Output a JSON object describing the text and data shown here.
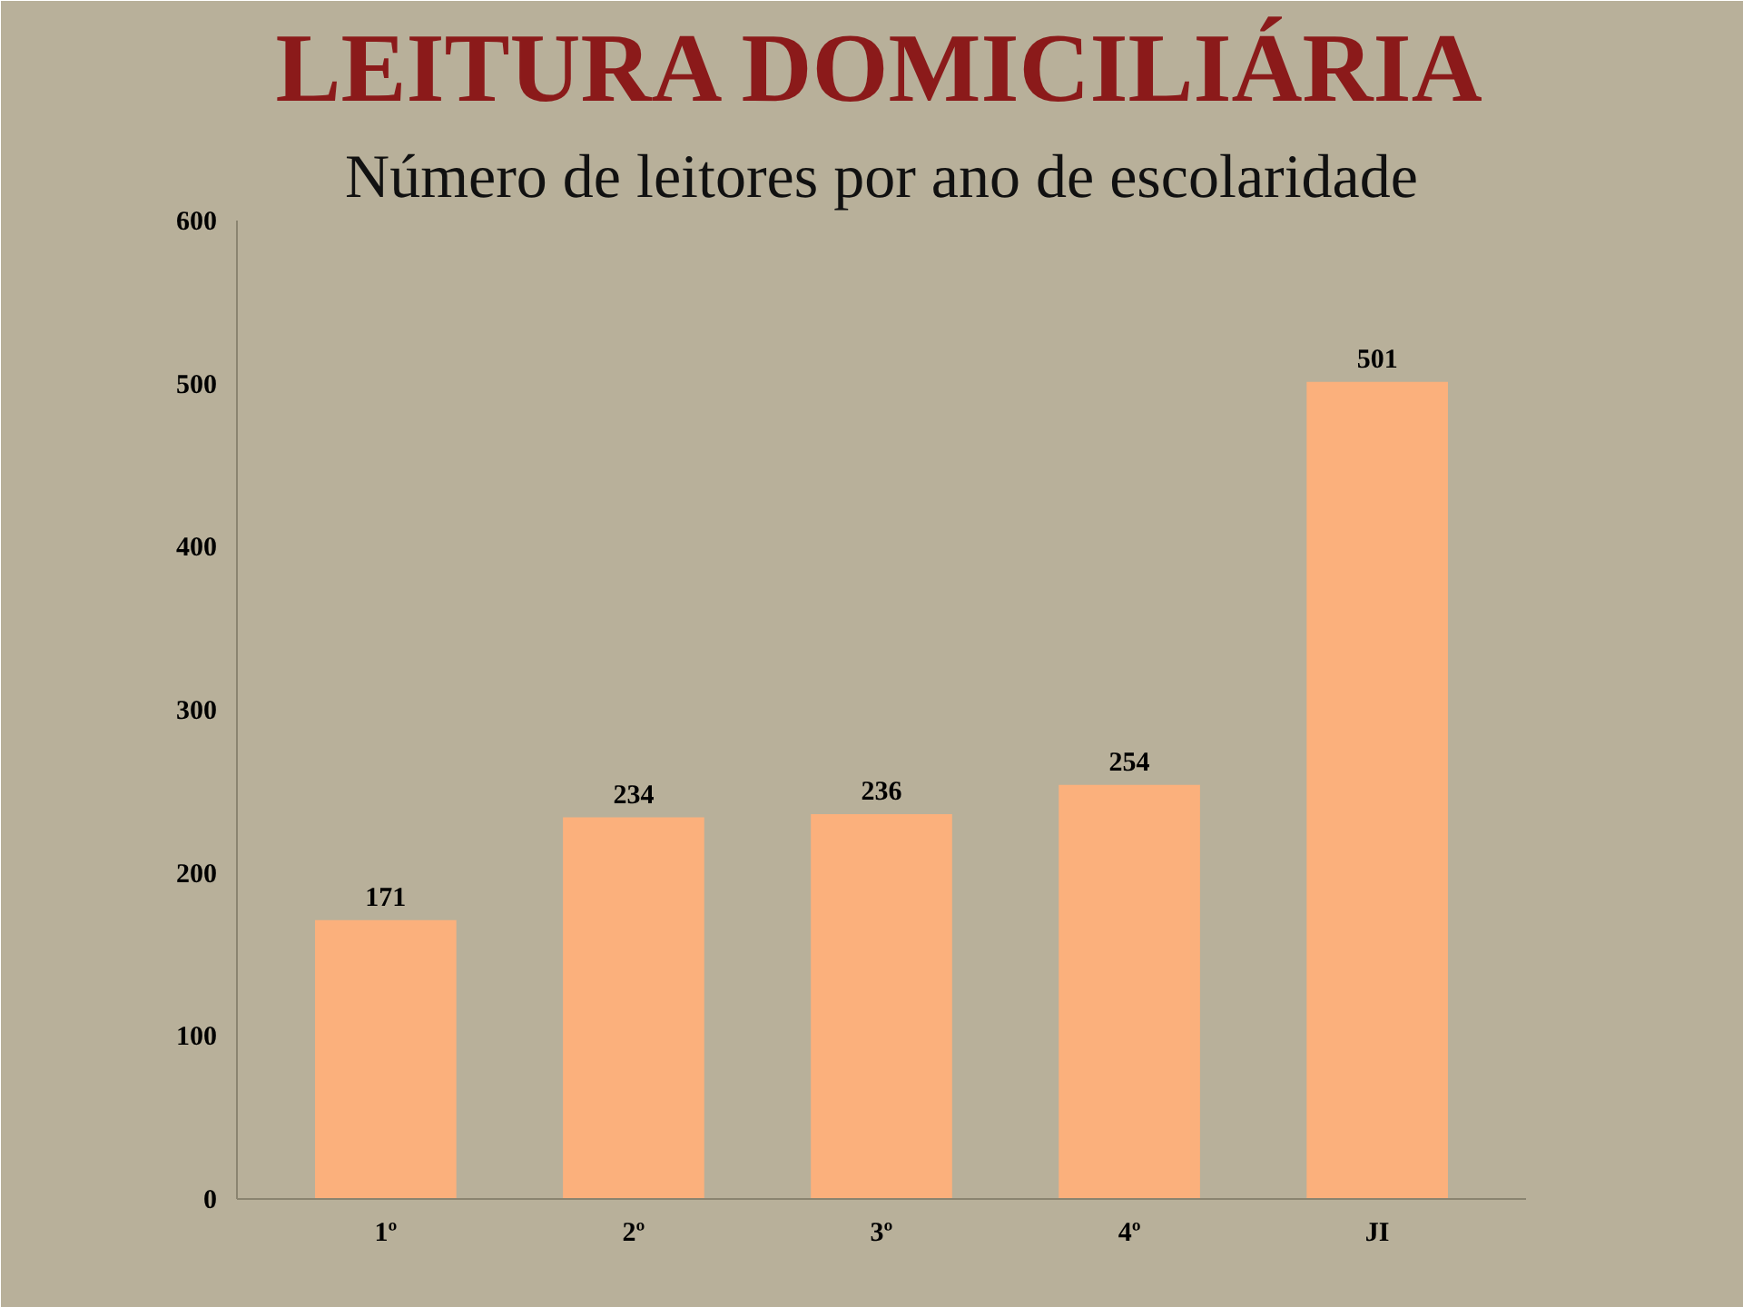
{
  "chart_data": {
    "type": "bar",
    "title": "LEITURA DOMICILIÁRIA",
    "subtitle": "Número de leitores por ano de escolaridade",
    "categories": [
      "1º",
      "2º",
      "3º",
      "4º",
      "JI"
    ],
    "values": [
      171,
      234,
      236,
      254,
      501
    ],
    "color": "#fbb07c",
    "ylim": [
      0,
      600
    ],
    "yticks": [
      0,
      100,
      200,
      300,
      400,
      500,
      600
    ],
    "grid": false,
    "data_labels": true
  }
}
